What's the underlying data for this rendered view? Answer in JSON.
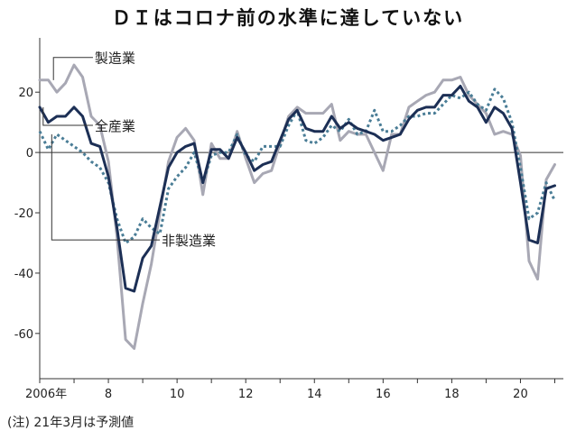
{
  "title": "ＤＩはコロナ前の水準に達していない",
  "note": "(注) 21年3月は予測値",
  "chart_data": {
    "type": "line",
    "title": "ＤＩはコロナ前の水準に達していない",
    "xlabel": "",
    "ylabel": "",
    "ylim": [
      -75,
      38
    ],
    "xlim": [
      2006.0,
      2021.25
    ],
    "yticks": [
      "20",
      "0",
      "-20",
      "-40",
      "-60"
    ],
    "ytick_values": [
      20,
      0,
      -20,
      -40,
      -60
    ],
    "xticks": [
      "2006年",
      "8",
      "10",
      "12",
      "14",
      "16",
      "18",
      "20"
    ],
    "xtick_values": [
      2006,
      2008,
      2010,
      2012,
      2014,
      2016,
      2018,
      2020
    ],
    "grid": false,
    "note": "(注) 21年3月は予測値",
    "series": [
      {
        "name": "製造業",
        "color": "#a8a8b4",
        "style": "solid",
        "x": [
          2006.0,
          2006.25,
          2006.5,
          2006.75,
          2007.0,
          2007.25,
          2007.5,
          2007.75,
          2008.0,
          2008.25,
          2008.5,
          2008.75,
          2009.0,
          2009.25,
          2009.5,
          2009.75,
          2010.0,
          2010.25,
          2010.5,
          2010.75,
          2011.0,
          2011.25,
          2011.5,
          2011.75,
          2012.0,
          2012.25,
          2012.5,
          2012.75,
          2013.0,
          2013.25,
          2013.5,
          2013.75,
          2014.0,
          2014.25,
          2014.5,
          2014.75,
          2015.0,
          2015.25,
          2015.5,
          2015.75,
          2016.0,
          2016.25,
          2016.5,
          2016.75,
          2017.0,
          2017.25,
          2017.5,
          2017.75,
          2018.0,
          2018.25,
          2018.5,
          2018.75,
          2019.0,
          2019.25,
          2019.5,
          2019.75,
          2020.0,
          2020.25,
          2020.5,
          2020.75,
          2021.0
        ],
        "values": [
          24,
          24,
          20,
          23,
          29,
          25,
          12,
          9,
          -3,
          -28,
          -62,
          -65,
          -50,
          -37,
          -20,
          -3,
          5,
          8,
          4,
          -14,
          3,
          -2,
          -2,
          7,
          -2,
          -10,
          -7,
          -6,
          3,
          12,
          15,
          13,
          13,
          13,
          16,
          4,
          7,
          6,
          6,
          0,
          -6,
          6,
          6,
          15,
          17,
          19,
          20,
          24,
          24,
          25,
          19,
          16,
          13,
          6,
          7,
          6,
          -1,
          -36,
          -42,
          -9,
          -4
        ]
      },
      {
        "name": "全産業",
        "color": "#1c2f55",
        "style": "solid",
        "x": [
          2006.0,
          2006.25,
          2006.5,
          2006.75,
          2007.0,
          2007.25,
          2007.5,
          2007.75,
          2008.0,
          2008.25,
          2008.5,
          2008.75,
          2009.0,
          2009.25,
          2009.5,
          2009.75,
          2010.0,
          2010.25,
          2010.5,
          2010.75,
          2011.0,
          2011.25,
          2011.5,
          2011.75,
          2012.0,
          2012.25,
          2012.5,
          2012.75,
          2013.0,
          2013.25,
          2013.5,
          2013.75,
          2014.0,
          2014.25,
          2014.5,
          2014.75,
          2015.0,
          2015.25,
          2015.5,
          2015.75,
          2016.0,
          2016.25,
          2016.5,
          2016.75,
          2017.0,
          2017.25,
          2017.5,
          2017.75,
          2018.0,
          2018.25,
          2018.5,
          2018.75,
          2019.0,
          2019.25,
          2019.5,
          2019.75,
          2020.0,
          2020.25,
          2020.5,
          2020.75,
          2021.0
        ],
        "values": [
          15,
          10,
          12,
          12,
          15,
          12,
          3,
          2,
          -8,
          -25,
          -45,
          -46,
          -35,
          -31,
          -18,
          -5,
          0,
          2,
          3,
          -10,
          1,
          1,
          -2,
          5,
          0,
          -6,
          -4,
          -3,
          4,
          11,
          14,
          8,
          7,
          7,
          12,
          8,
          10,
          8,
          7,
          6,
          4,
          5,
          6,
          11,
          14,
          15,
          15,
          19,
          19,
          22,
          17,
          15,
          10,
          15,
          13,
          8,
          -10,
          -29,
          -30,
          -12,
          -11
        ]
      },
      {
        "name": "非製造業",
        "color": "#4a7d96",
        "style": "dotted",
        "x": [
          2006.0,
          2006.25,
          2006.5,
          2006.75,
          2007.0,
          2007.25,
          2007.5,
          2007.75,
          2008.0,
          2008.25,
          2008.5,
          2008.75,
          2009.0,
          2009.25,
          2009.5,
          2009.75,
          2010.0,
          2010.25,
          2010.5,
          2010.75,
          2011.0,
          2011.25,
          2011.5,
          2011.75,
          2012.0,
          2012.25,
          2012.5,
          2012.75,
          2013.0,
          2013.25,
          2013.5,
          2013.75,
          2014.0,
          2014.25,
          2014.5,
          2014.75,
          2015.0,
          2015.25,
          2015.5,
          2015.75,
          2016.0,
          2016.25,
          2016.5,
          2016.75,
          2017.0,
          2017.25,
          2017.5,
          2017.75,
          2018.0,
          2018.25,
          2018.5,
          2018.75,
          2019.0,
          2019.25,
          2019.5,
          2019.75,
          2020.0,
          2020.25,
          2020.5,
          2020.75,
          2021.0
        ],
        "values": [
          7,
          1,
          6,
          4,
          2,
          0,
          -3,
          -5,
          -10,
          -22,
          -30,
          -28,
          -22,
          -25,
          -27,
          -12,
          -8,
          -5,
          0,
          -10,
          -1,
          0,
          0,
          6,
          -1,
          -3,
          2,
          2,
          2,
          9,
          14,
          4,
          3,
          5,
          9,
          7,
          11,
          6,
          7,
          14,
          7,
          7,
          9,
          12,
          12,
          13,
          13,
          16,
          19,
          18,
          20,
          16,
          14,
          21,
          18,
          10,
          -5,
          -22,
          -20,
          -10,
          -16
        ]
      }
    ]
  }
}
